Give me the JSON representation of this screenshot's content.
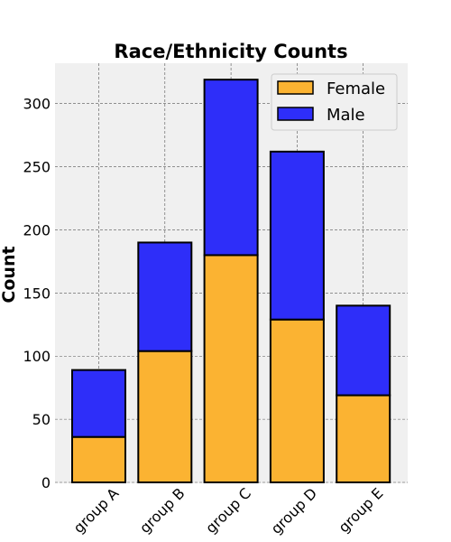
{
  "chart_data": {
    "type": "bar",
    "stacked": true,
    "title": "Race/Ethnicity Counts",
    "xlabel": "",
    "ylabel": "Count",
    "categories": [
      "group A",
      "group B",
      "group C",
      "group D",
      "group E"
    ],
    "series": [
      {
        "name": "Female",
        "values": [
          36,
          104,
          180,
          129,
          69
        ],
        "color": "#FBB332"
      },
      {
        "name": "Male",
        "values": [
          53,
          86,
          139,
          133,
          71
        ],
        "color": "#2E2EF9"
      }
    ],
    "ylim": [
      0,
      332
    ],
    "yticks": [
      0,
      50,
      100,
      150,
      200,
      250,
      300
    ],
    "grid": true,
    "legend": "top-right",
    "background_color": "#F0F0F0",
    "edge_color": "#000000"
  }
}
